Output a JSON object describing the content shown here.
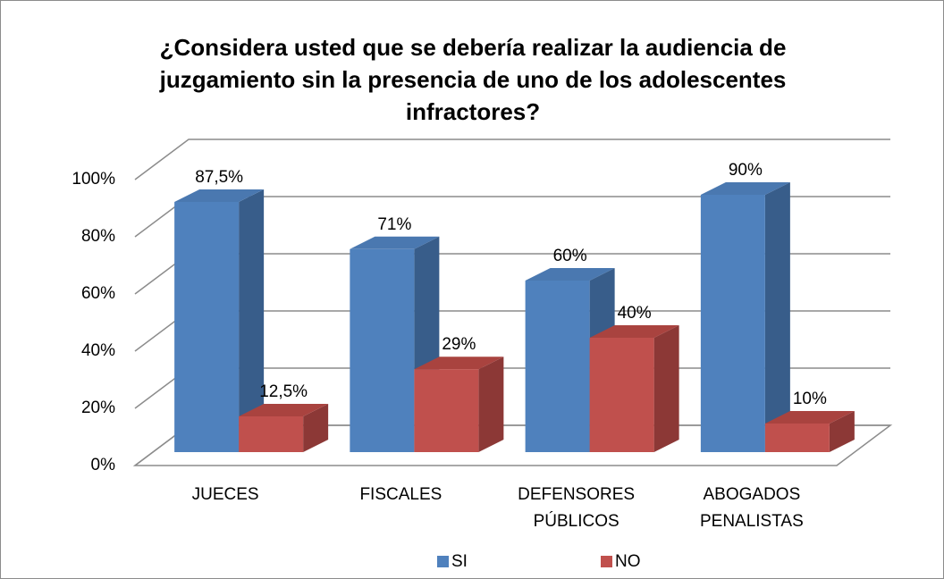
{
  "chart_data": {
    "type": "bar3d",
    "title": "¿Considera usted que se debería realizar la audiencia de juzgamiento sin la presencia de uno de los adolescentes infractores?",
    "categories": [
      "JUECES",
      "FISCALES",
      "DEFENSORES PÚBLICOS",
      "ABOGADOS PENALISTAS"
    ],
    "series": [
      {
        "name": "SI",
        "color": "#4f81bd",
        "side": "#385d8a",
        "top": "#4a78b0",
        "values": [
          87.5,
          71,
          60,
          90
        ],
        "value_labels": [
          "87,5%",
          "71%",
          "60%",
          "90%"
        ]
      },
      {
        "name": "NO",
        "color": "#c0504d",
        "side": "#8c3836",
        "top": "#a9433f",
        "values": [
          12.5,
          29,
          40,
          10
        ],
        "value_labels": [
          "12,5%",
          "29%",
          "40%",
          "10%"
        ]
      }
    ],
    "ylim": [
      0,
      100
    ],
    "yticks": [
      {
        "value": 0,
        "label": "0%"
      },
      {
        "value": 20,
        "label": "20%"
      },
      {
        "value": 40,
        "label": "40%"
      },
      {
        "value": 60,
        "label": "60%"
      },
      {
        "value": 80,
        "label": "80%"
      },
      {
        "value": 100,
        "label": "100%"
      }
    ],
    "grid": true,
    "legend": "bottom"
  }
}
